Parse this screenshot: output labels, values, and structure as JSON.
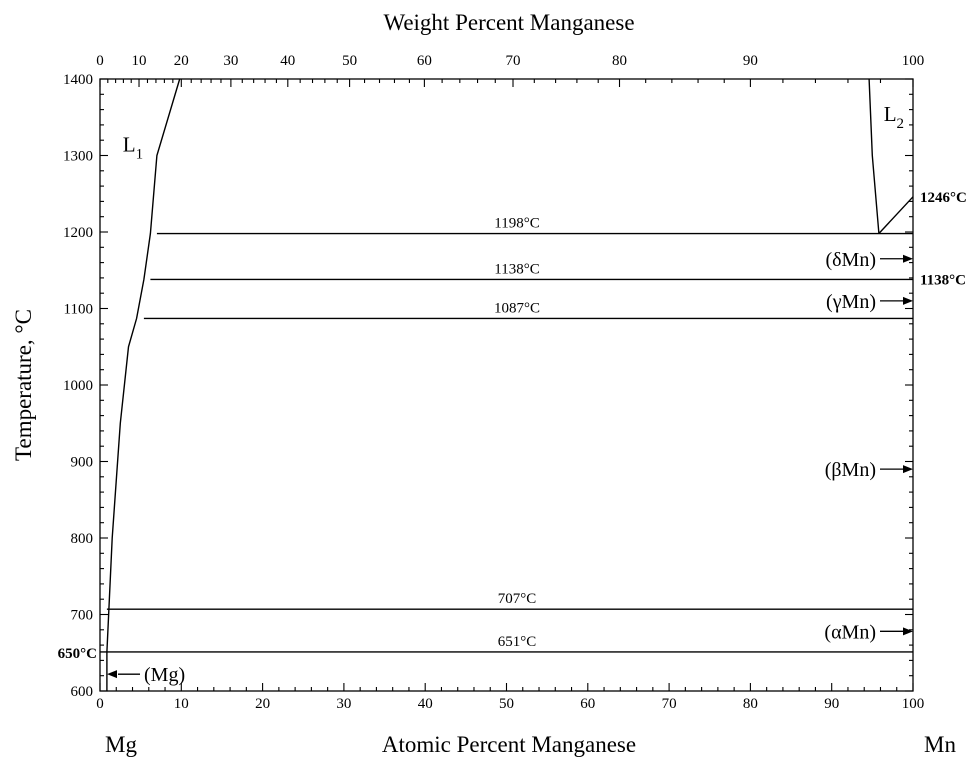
{
  "chart_data": {
    "type": "line",
    "title": "Weight Percent Manganese",
    "xlabel": "Atomic Percent Manganese",
    "ylabel": "Temperature, °C",
    "xlim": [
      0,
      100
    ],
    "ylim": [
      600,
      1400
    ],
    "x_ticks": [
      0,
      10,
      20,
      30,
      40,
      50,
      60,
      70,
      80,
      90,
      100
    ],
    "y_ticks": [
      600,
      700,
      800,
      900,
      1000,
      1100,
      1200,
      1300,
      1400
    ],
    "top_axis_ticks": [
      {
        "label": "0",
        "at_x": 0
      },
      {
        "label": "10",
        "at_x": 4.8
      },
      {
        "label": "20",
        "at_x": 10.0
      },
      {
        "label": "30",
        "at_x": 16.1
      },
      {
        "label": "40",
        "at_x": 23.1
      },
      {
        "label": "50",
        "at_x": 30.7
      },
      {
        "label": "60",
        "at_x": 39.9
      },
      {
        "label": "70",
        "at_x": 50.8
      },
      {
        "label": "80",
        "at_x": 63.9
      },
      {
        "label": "90",
        "at_x": 80.0
      },
      {
        "label": "100",
        "at_x": 100
      }
    ],
    "left_element": "Mg",
    "right_element": "Mn",
    "grid": false,
    "series": [
      {
        "x": [
          0.85,
          1.5,
          2.5,
          3.5,
          4.5,
          5.4,
          6.2,
          7.0,
          9.8
        ],
        "y": [
          651,
          800,
          950,
          1050,
          1087,
          1138,
          1198,
          1300,
          1400
        ]
      },
      {
        "x": [
          95.8,
          95.0,
          94.6
        ],
        "y": [
          1198,
          1300,
          1400
        ]
      },
      {
        "x": [
          95.8,
          100
        ],
        "y": [
          1198,
          1246
        ]
      },
      {
        "x": [
          0.85,
          0.85
        ],
        "y": [
          651,
          600
        ]
      }
    ],
    "isotherms": [
      {
        "label": "1198°C",
        "temp": 1198,
        "x_start": 7.0,
        "x_end": 100
      },
      {
        "label": "1138°C",
        "temp": 1138,
        "x_start": 6.2,
        "x_end": 100
      },
      {
        "label": "1087°C",
        "temp": 1087,
        "x_start": 5.4,
        "x_end": 100
      },
      {
        "label": "707°C",
        "temp": 707,
        "x_start": 0.85,
        "x_end": 100
      },
      {
        "label": "651°C",
        "temp": 651,
        "x_start": 0,
        "x_end": 100
      }
    ],
    "edge_labels": [
      {
        "text": "1246°C",
        "side": "right",
        "temp": 1246
      },
      {
        "text": "1138°C",
        "side": "right",
        "temp": 1138
      },
      {
        "text": "650°C",
        "side": "left",
        "temp": 650
      }
    ],
    "region_labels": [
      {
        "main": "L",
        "sub": "1",
        "x": 2.8,
        "y": 1305
      },
      {
        "main": "L",
        "sub": "2",
        "x": 96.4,
        "y": 1345
      }
    ],
    "phase_labels": [
      {
        "text": "(δMn)",
        "temp": 1165,
        "side": "right"
      },
      {
        "text": "(γMn)",
        "temp": 1110,
        "side": "right"
      },
      {
        "text": "(βMn)",
        "temp": 890,
        "side": "right"
      },
      {
        "text": "(αMn)",
        "temp": 678,
        "side": "right"
      },
      {
        "text": "(Mg)",
        "temp": 622,
        "side": "left"
      }
    ]
  }
}
